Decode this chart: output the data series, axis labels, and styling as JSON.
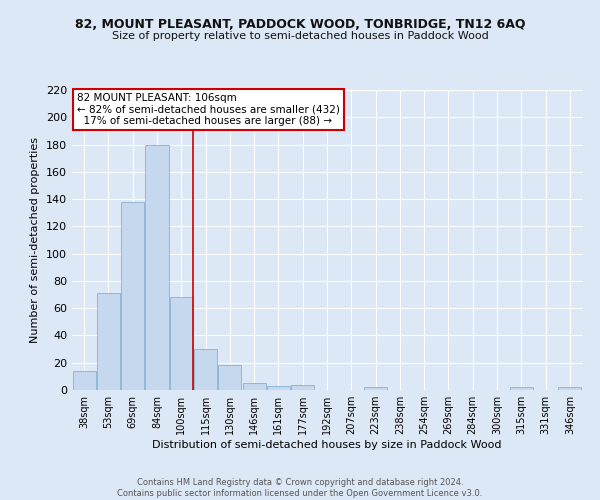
{
  "title1": "82, MOUNT PLEASANT, PADDOCK WOOD, TONBRIDGE, TN12 6AQ",
  "title2": "Size of property relative to semi-detached houses in Paddock Wood",
  "xlabel": "Distribution of semi-detached houses by size in Paddock Wood",
  "ylabel": "Number of semi-detached properties",
  "footer1": "Contains HM Land Registry data © Crown copyright and database right 2024.",
  "footer2": "Contains public sector information licensed under the Open Government Licence v3.0.",
  "bar_labels": [
    "38sqm",
    "53sqm",
    "69sqm",
    "84sqm",
    "100sqm",
    "115sqm",
    "130sqm",
    "146sqm",
    "161sqm",
    "177sqm",
    "192sqm",
    "207sqm",
    "223sqm",
    "238sqm",
    "254sqm",
    "269sqm",
    "284sqm",
    "300sqm",
    "315sqm",
    "331sqm",
    "346sqm"
  ],
  "bar_values": [
    14,
    71,
    138,
    180,
    68,
    30,
    18,
    5,
    3,
    4,
    0,
    0,
    2,
    0,
    0,
    0,
    0,
    0,
    2,
    0,
    2
  ],
  "bar_color": "#c5d8ee",
  "bar_edge_color": "#90b8d8",
  "vline_x": 4.5,
  "vline_color": "#cc0000",
  "ylim": [
    0,
    220
  ],
  "yticks": [
    0,
    20,
    40,
    60,
    80,
    100,
    120,
    140,
    160,
    180,
    200,
    220
  ],
  "annotation_title": "82 MOUNT PLEASANT: 106sqm",
  "annotation_line1": "← 82% of semi-detached houses are smaller (432)",
  "annotation_line2": "17% of semi-detached houses are larger (88) →",
  "annotation_box_color": "#ffffff",
  "annotation_border_color": "#cc0000",
  "background_color": "#dce8f5",
  "plot_bg_color": "#dce8f5",
  "grid_color": "#ffffff"
}
